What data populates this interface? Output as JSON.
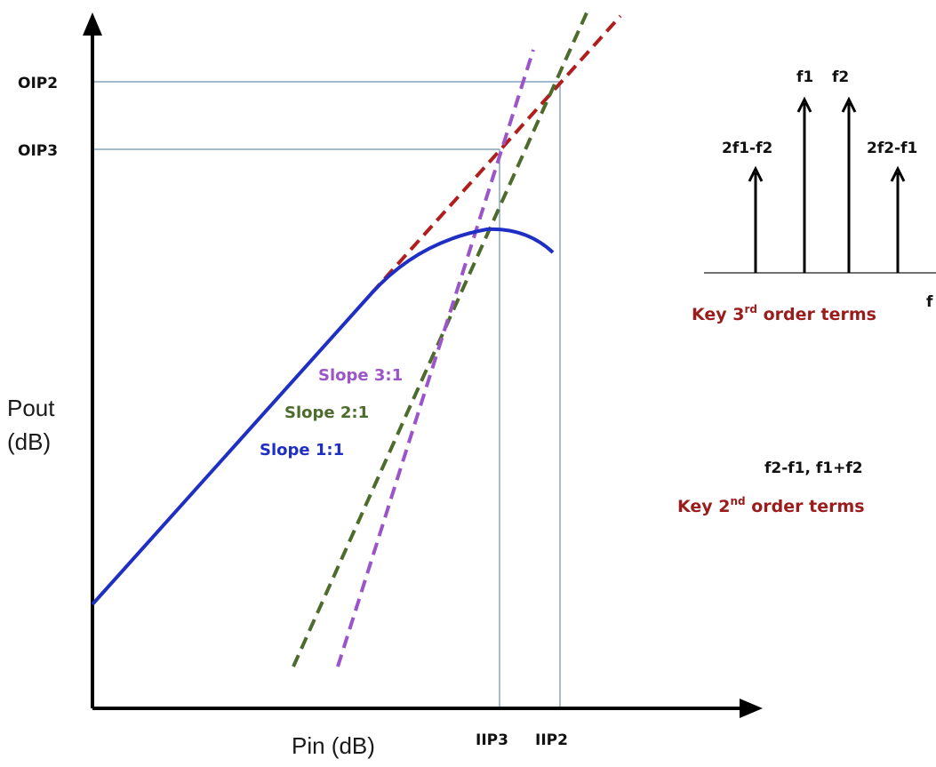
{
  "axes": {
    "y_label_line1": "Pout",
    "y_label_line2": "(dB)",
    "x_label": "Pin (dB)",
    "y_ticks": {
      "oip2": "OIP2",
      "oip3": "OIP3"
    },
    "x_ticks": {
      "iip3": "IIP3",
      "iip2": "IIP2"
    }
  },
  "slopes": {
    "slope_3": "Slope 3:1",
    "slope_2": "Slope 2:1",
    "slope_1": "Slope 1:1"
  },
  "spectrum": {
    "tone_f1": "f1",
    "tone_f2": "f2",
    "im3_low": "2f1-f2",
    "im3_high": "2f2-f1",
    "axis_label": "f",
    "third_order_caption_pre": "Key 3",
    "third_order_caption_sup": "rd",
    "third_order_caption_post": " order terms"
  },
  "second_order": {
    "terms": "f2-f1, f1+f2",
    "caption_pre": "Key 2",
    "caption_sup": "nd",
    "caption_post": " order terms"
  },
  "colors": {
    "fundamental": "#1f2fc4",
    "third_order": "#9b55c8",
    "second_order": "#4d6b2c",
    "extrapolation": "#b01e1e",
    "guide": "#6a8fb0",
    "caption": "#9b1c1c"
  }
}
